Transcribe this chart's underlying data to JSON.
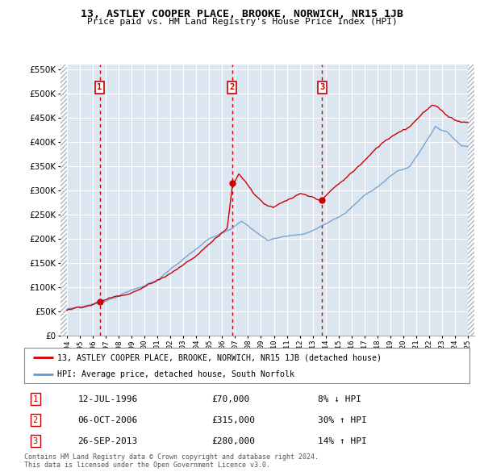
{
  "title": "13, ASTLEY COOPER PLACE, BROOKE, NORWICH, NR15 1JB",
  "subtitle": "Price paid vs. HM Land Registry's House Price Index (HPI)",
  "legend_line1": "13, ASTLEY COOPER PLACE, BROOKE, NORWICH, NR15 1JB (detached house)",
  "legend_line2": "HPI: Average price, detached house, South Norfolk",
  "sales": [
    {
      "num": 1,
      "date": "12-JUL-1996",
      "price": 70000,
      "hpi_pct": "8% ↓ HPI",
      "year": 1996.53
    },
    {
      "num": 2,
      "date": "06-OCT-2006",
      "price": 315000,
      "hpi_pct": "30% ↑ HPI",
      "year": 2006.77
    },
    {
      "num": 3,
      "date": "26-SEP-2013",
      "price": 280000,
      "hpi_pct": "14% ↑ HPI",
      "year": 2013.74
    }
  ],
  "footnote1": "Contains HM Land Registry data © Crown copyright and database right 2024.",
  "footnote2": "This data is licensed under the Open Government Licence v3.0.",
  "red_color": "#cc0000",
  "blue_color": "#6699cc",
  "bg_color": "#dce6f1",
  "hatch_color": "#aab4c4",
  "grid_color": "#ffffff",
  "ylim": [
    0,
    560000
  ],
  "yticks": [
    0,
    50000,
    100000,
    150000,
    200000,
    250000,
    300000,
    350000,
    400000,
    450000,
    500000,
    550000
  ],
  "xlim": [
    1993.5,
    2025.5
  ],
  "data_start": 1994.0,
  "data_end": 2025.0,
  "xticks": [
    1994,
    1995,
    1996,
    1997,
    1998,
    1999,
    2000,
    2001,
    2002,
    2003,
    2004,
    2005,
    2006,
    2007,
    2008,
    2009,
    2010,
    2011,
    2012,
    2013,
    2014,
    2015,
    2016,
    2017,
    2018,
    2019,
    2020,
    2021,
    2022,
    2023,
    2024,
    2025
  ]
}
